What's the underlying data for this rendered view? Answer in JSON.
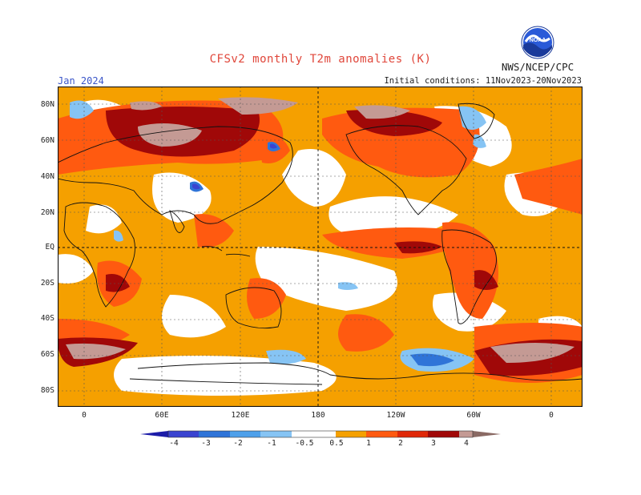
{
  "title": "CFSv2 monthly T2m anomalies (K)",
  "agency": "NWS/NCEP/CPC",
  "logo_text": "NOAA",
  "month_label": "Jan 2024",
  "initial_conditions": "Initial conditions: 11Nov2023-20Nov2023",
  "lat_labels": [
    "80N",
    "60N",
    "40N",
    "20N",
    "EQ",
    "20S",
    "40S",
    "60S",
    "80S"
  ],
  "lon_labels": [
    "0",
    "60E",
    "120E",
    "180",
    "120W",
    "60W",
    "0"
  ],
  "colorbar": {
    "labels": [
      "-4",
      "-3",
      "-2",
      "-1",
      "-0.5",
      "0.5",
      "1",
      "2",
      "3",
      "4"
    ],
    "colors": [
      "#1c1ca8",
      "#3a44d0",
      "#2f74d8",
      "#4ea0ea",
      "#86c4f4",
      "#ffffff",
      "#f5a000",
      "#ff5a10",
      "#e02808",
      "#a00808",
      "#c49a94",
      "#8a6a64"
    ]
  },
  "colors": {
    "title": "#e0463a",
    "month": "#3a55c8",
    "ocean_base": "#f5a000",
    "neutral": "#ffffff",
    "warm": "#ff5a10",
    "hot": "#a00808",
    "extreme": "#c49a94",
    "cool": "#4ea0ea",
    "cold": "#2a4fd0"
  }
}
